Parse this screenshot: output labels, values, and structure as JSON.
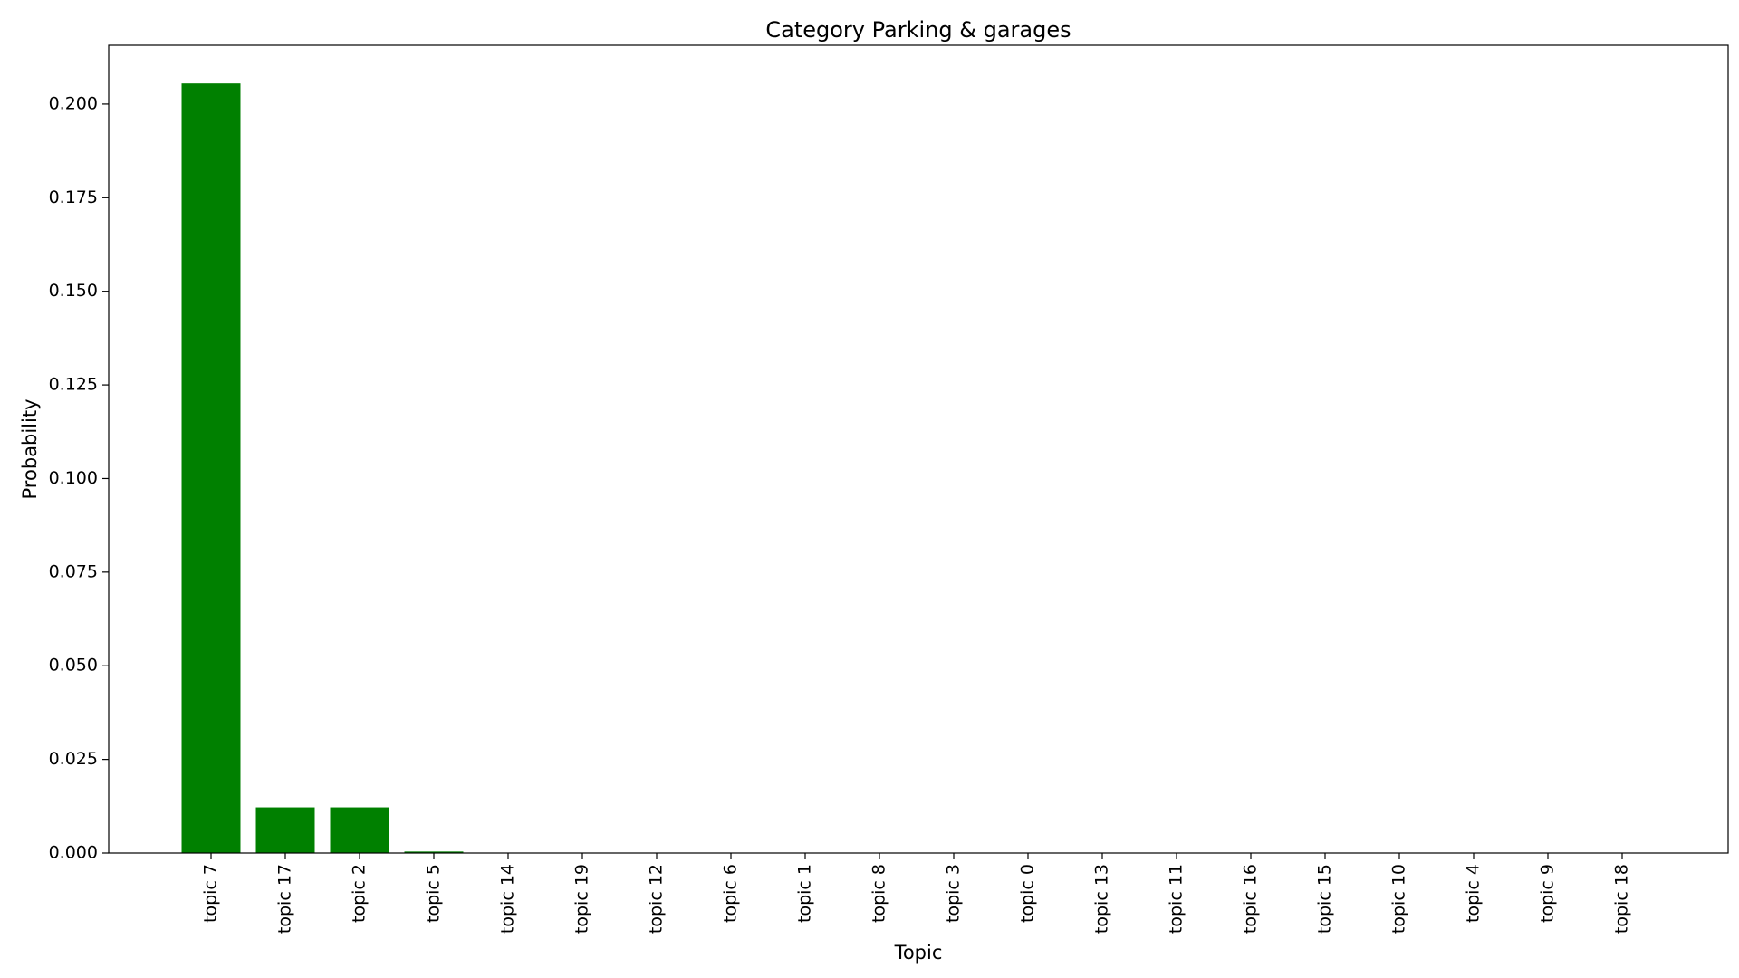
{
  "chart_data": {
    "type": "bar",
    "title": "Category Parking & garages",
    "xlabel": "Topic",
    "ylabel": "Probability",
    "categories": [
      "topic 7",
      "topic 17",
      "topic 2",
      "topic 5",
      "topic 14",
      "topic 19",
      "topic 12",
      "topic 6",
      "topic 1",
      "topic 8",
      "topic 3",
      "topic 0",
      "topic 13",
      "topic 11",
      "topic 16",
      "topic 15",
      "topic 10",
      "topic 4",
      "topic 9",
      "topic 18"
    ],
    "values": [
      0.2055,
      0.0122,
      0.0122,
      0.0004,
      0.0001,
      0.0001,
      0.0001,
      0.0001,
      0.0001,
      0.0001,
      0.0001,
      0.0001,
      0.0001,
      0.0001,
      0.0001,
      0.0001,
      0.0001,
      0.0001,
      0.0001,
      0.0001
    ],
    "ylim": [
      0,
      0.2157
    ],
    "yticks": [
      "0.000",
      "0.025",
      "0.050",
      "0.075",
      "0.100",
      "0.125",
      "0.150",
      "0.175",
      "0.200"
    ],
    "bar_color": "#008000",
    "grid": false,
    "legend": "none"
  }
}
